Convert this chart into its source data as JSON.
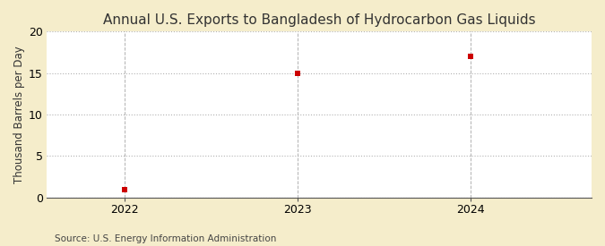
{
  "title": "Annual U.S. Exports to Bangladesh of Hydrocarbon Gas Liquids",
  "ylabel": "Thousand Barrels per Day",
  "source": "Source: U.S. Energy Information Administration",
  "x_values": [
    2022,
    2023,
    2024
  ],
  "y_values": [
    1.0,
    15.0,
    17.0
  ],
  "ylim": [
    0,
    20
  ],
  "yticks": [
    0,
    5,
    10,
    15,
    20
  ],
  "xlim": [
    2021.55,
    2024.7
  ],
  "xticks": [
    2022,
    2023,
    2024
  ],
  "marker_color": "#cc0000",
  "marker": "s",
  "marker_size": 4,
  "bg_color": "#f5edcb",
  "plot_bg_color": "#ffffff",
  "grid_color": "#aaaaaa",
  "title_fontsize": 11,
  "label_fontsize": 8.5,
  "tick_fontsize": 9,
  "source_fontsize": 7.5
}
